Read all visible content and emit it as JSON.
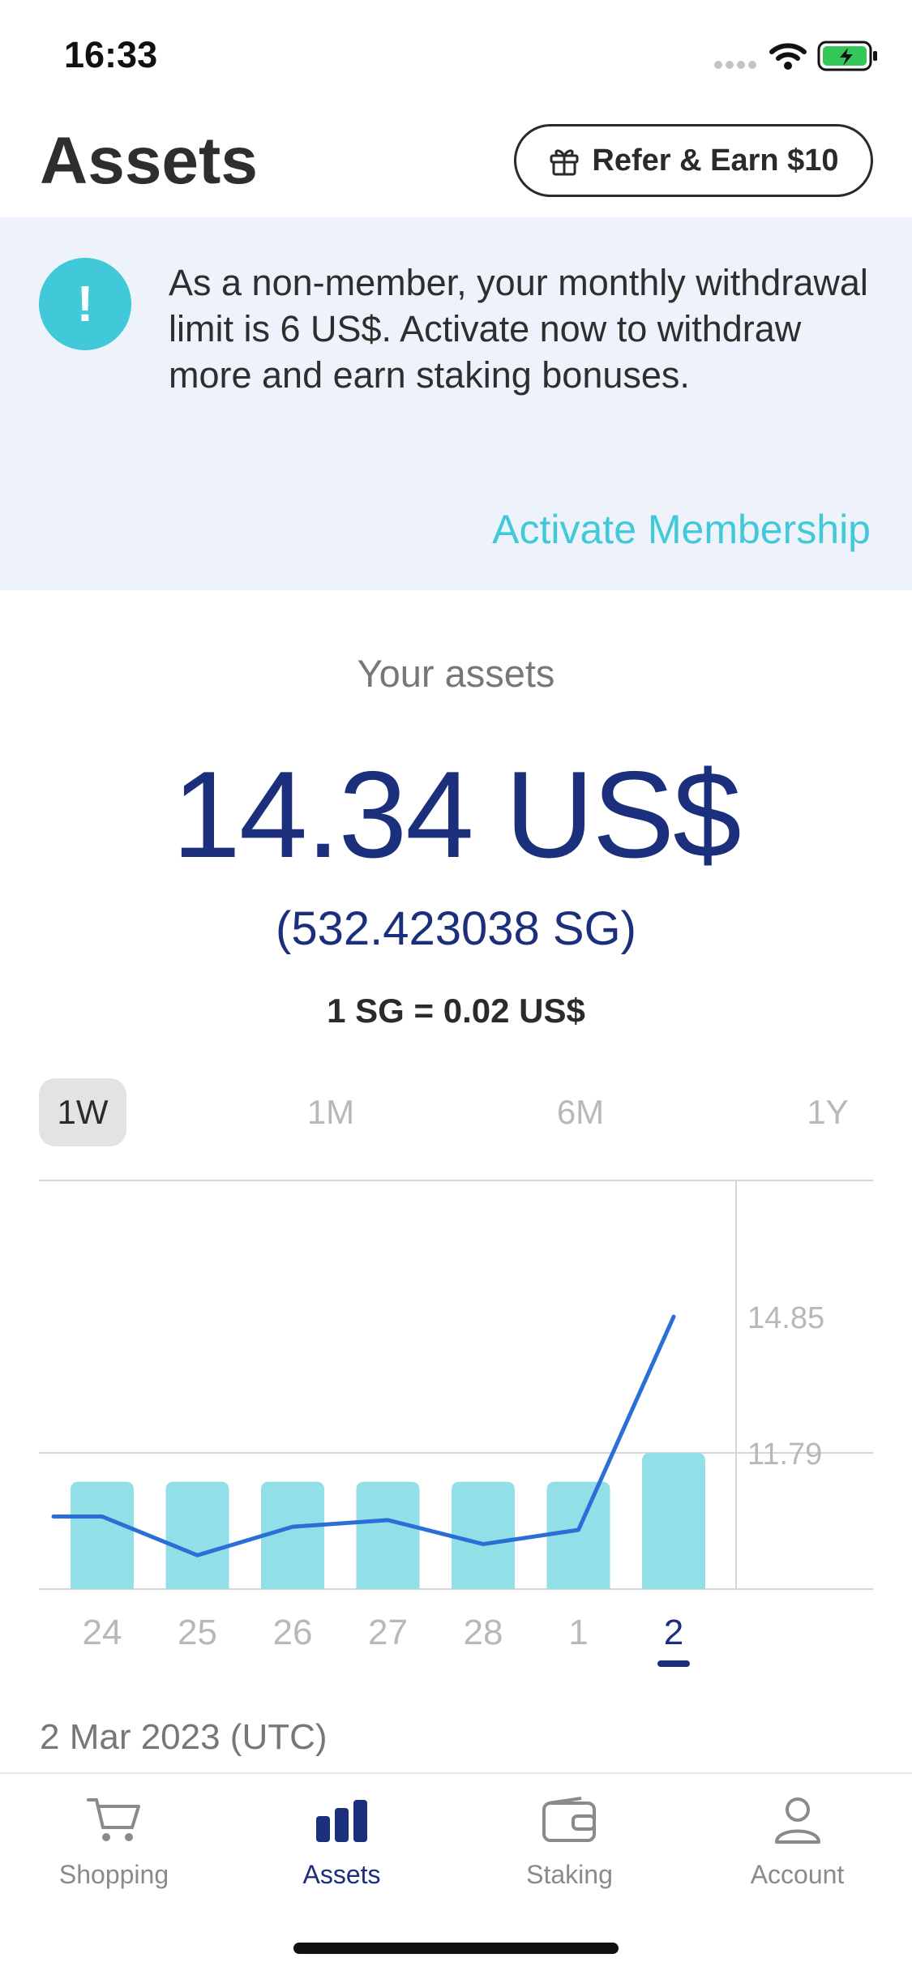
{
  "status_bar": {
    "time": "16:33"
  },
  "header": {
    "title": "Assets",
    "refer_label": "Refer & Earn $10"
  },
  "banner": {
    "icon_glyph": "!",
    "message": "As a non-member, your monthly withdrawal limit is 6 US$. Activate now to withdraw more and earn staking bonuses.",
    "link_label": "Activate Membership"
  },
  "summary": {
    "label": "Your assets",
    "amount": "14.34 US$",
    "sg_amount": "(532.423038 SG)",
    "rate": "1 SG = 0.02 US$"
  },
  "ranges": [
    {
      "label": "1W",
      "active": true
    },
    {
      "label": "1M",
      "active": false
    },
    {
      "label": "6M",
      "active": false
    },
    {
      "label": "1Y",
      "active": false
    }
  ],
  "chart_data": {
    "type": "bar",
    "categories": [
      "24",
      "25",
      "26",
      "27",
      "28",
      "1",
      "2"
    ],
    "selected_category": "2",
    "y_ticks": [
      "14.85",
      "11.79"
    ],
    "ylim": [
      8.73,
      17.91
    ],
    "bar_values": [
      11.14,
      11.14,
      11.14,
      11.14,
      11.14,
      11.14,
      11.79
    ],
    "line_values": [
      10.36,
      10.36,
      9.49,
      10.13,
      10.28,
      9.74,
      10.06,
      14.85
    ],
    "grid": true,
    "bar_color": "#92dfe8",
    "line_color": "#2a6fd6"
  },
  "date_caption": "2 Mar 2023 (UTC)",
  "nav": {
    "items": [
      {
        "label": "Shopping",
        "icon": "cart-icon",
        "active": false
      },
      {
        "label": "Assets",
        "icon": "bar-chart-icon",
        "active": true
      },
      {
        "label": "Staking",
        "icon": "wallet-icon",
        "active": false
      },
      {
        "label": "Account",
        "icon": "person-icon",
        "active": false
      }
    ]
  },
  "colors": {
    "primary": "#1b2f7c",
    "accent": "#41c8d9",
    "banner_bg": "#eef3fb"
  }
}
